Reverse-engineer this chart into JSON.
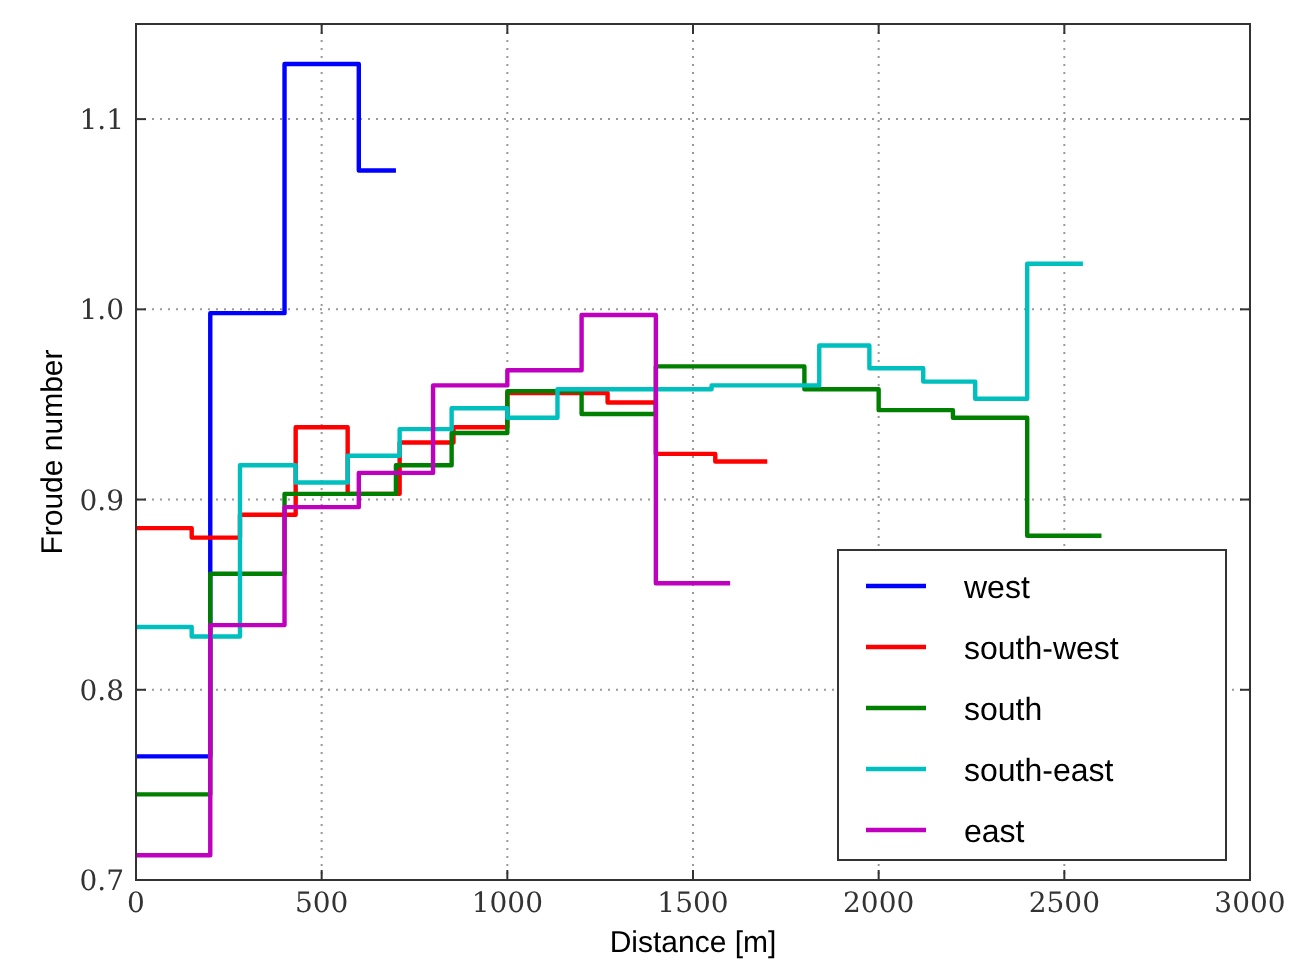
{
  "chart_data": {
    "type": "step",
    "xlabel": "Distance [m]",
    "ylabel": "Froude number",
    "xlim": [
      0,
      3000
    ],
    "ylim": [
      0.7,
      1.15
    ],
    "xticks": [
      0,
      500,
      1000,
      1500,
      2000,
      2500,
      3000
    ],
    "yticks": [
      {
        "value": 0.7,
        "label": "0.7"
      },
      {
        "value": 0.8,
        "label": "0.8"
      },
      {
        "value": 0.9,
        "label": "0.9"
      },
      {
        "value": 1.0,
        "label": "1.0"
      },
      {
        "value": 1.1,
        "label": "1.1"
      }
    ],
    "grid": true,
    "legend": "bottom right",
    "line_style": "solid",
    "series": [
      {
        "name": "west",
        "color": "#0000ff",
        "x": [
          0,
          200,
          400,
          600,
          700
        ],
        "values": [
          0.765,
          0.998,
          1.129,
          1.073,
          1.073
        ]
      },
      {
        "name": "south-west",
        "color": "#ff0000",
        "x": [
          0,
          150,
          280,
          430,
          570,
          710,
          855,
          1000,
          1270,
          1400,
          1560,
          1700
        ],
        "values": [
          0.885,
          0.88,
          0.892,
          0.938,
          0.903,
          0.93,
          0.938,
          0.956,
          0.951,
          0.924,
          0.92,
          0.92
        ]
      },
      {
        "name": "south",
        "color": "#008000",
        "x": [
          0,
          200,
          400,
          700,
          850,
          1000,
          1200,
          1400,
          1800,
          2000,
          2200,
          2400,
          2600
        ],
        "values": [
          0.745,
          0.861,
          0.903,
          0.918,
          0.935,
          0.957,
          0.945,
          0.97,
          0.958,
          0.947,
          0.943,
          0.881,
          0.881
        ]
      },
      {
        "name": "south-east",
        "color": "#00bfbf",
        "x": [
          0,
          150,
          280,
          430,
          570,
          710,
          850,
          1000,
          1135,
          1550,
          1840,
          1975,
          2120,
          2260,
          2400,
          2550
        ],
        "values": [
          0.833,
          0.828,
          0.918,
          0.909,
          0.923,
          0.937,
          0.948,
          0.943,
          0.958,
          0.96,
          0.981,
          0.969,
          0.962,
          0.953,
          1.024,
          1.024
        ]
      },
      {
        "name": "east",
        "color": "#bf00bf",
        "x": [
          0,
          200,
          400,
          600,
          800,
          1000,
          1200,
          1400,
          1600
        ],
        "values": [
          0.713,
          0.834,
          0.896,
          0.914,
          0.96,
          0.968,
          0.997,
          0.856,
          0.856
        ]
      }
    ]
  }
}
